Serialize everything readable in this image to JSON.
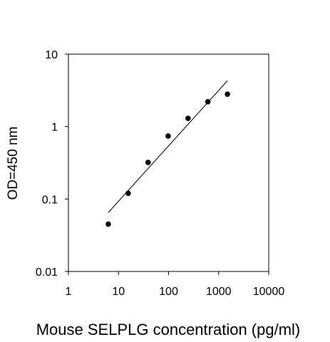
{
  "chart_data": {
    "type": "scatter",
    "title": "",
    "xlabel": "Mouse SELPLG concentration (pg/ml)",
    "ylabel": "OD=450 nm",
    "x_scale": "log",
    "y_scale": "log",
    "xlim": [
      1,
      10000
    ],
    "ylim": [
      0.01,
      10
    ],
    "x_ticks": [
      1,
      10,
      100,
      1000,
      10000
    ],
    "x_tick_labels": [
      "1",
      "10",
      "100",
      "1000",
      "10000"
    ],
    "y_ticks": [
      0.01,
      0.1,
      1,
      10
    ],
    "y_tick_labels": [
      "0.01",
      "0.1",
      "1",
      "10"
    ],
    "grid": false,
    "legend": "none",
    "colors": {
      "points": "#000000",
      "fit_line": "#000000",
      "axes": "#000000"
    },
    "series": [
      {
        "points": [
          {
            "x": 6.25,
            "y": 0.045
          },
          {
            "x": 15.6,
            "y": 0.12
          },
          {
            "x": 39,
            "y": 0.32
          },
          {
            "x": 98,
            "y": 0.74
          },
          {
            "x": 245,
            "y": 1.3
          },
          {
            "x": 610,
            "y": 2.2
          },
          {
            "x": 1500,
            "y": 2.8
          }
        ]
      }
    ],
    "fit_line": {
      "start": {
        "x": 6.25,
        "y": 0.065
      },
      "end": {
        "x": 1500,
        "y": 4.3
      }
    }
  }
}
